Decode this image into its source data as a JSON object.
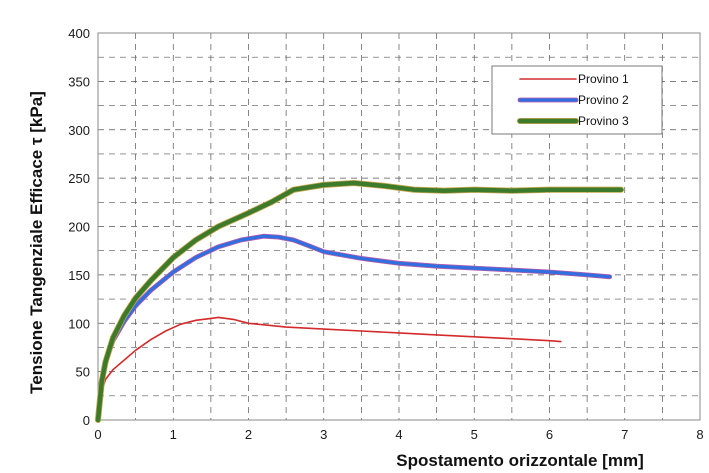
{
  "chart_data": {
    "type": "line",
    "title": "",
    "xlabel": "Spostamento orizzontale  [mm]",
    "ylabel": "Tensione Tangenziale Efficace τ  [kPa]",
    "xlim": [
      0,
      8
    ],
    "ylim": [
      0,
      400
    ],
    "xticks": [
      0,
      1,
      2,
      3,
      4,
      5,
      6,
      7,
      8
    ],
    "yticks": [
      0,
      50,
      100,
      150,
      200,
      250,
      300,
      350,
      400
    ],
    "grid": true,
    "legend_position": "top-right",
    "series": [
      {
        "name": "Provino 1",
        "color": "#d42a2a",
        "x": [
          0,
          0.05,
          0.1,
          0.2,
          0.35,
          0.5,
          0.7,
          0.9,
          1.1,
          1.3,
          1.5,
          1.6,
          1.8,
          2.0,
          2.5,
          3.0,
          3.5,
          4.0,
          4.5,
          5.0,
          5.5,
          6.0,
          6.15
        ],
        "y": [
          0,
          30,
          42,
          52,
          62,
          72,
          83,
          92,
          99,
          103,
          105,
          106,
          104,
          100,
          96,
          94,
          92,
          90,
          88,
          86,
          84,
          82,
          81
        ]
      },
      {
        "name": "Provino 2",
        "color": "#2f6fe0",
        "x": [
          0,
          0.05,
          0.1,
          0.2,
          0.35,
          0.5,
          0.7,
          1.0,
          1.3,
          1.6,
          1.9,
          2.2,
          2.4,
          2.6,
          2.8,
          3.0,
          3.5,
          4.0,
          4.5,
          5.0,
          5.5,
          6.0,
          6.5,
          6.8
        ],
        "y": [
          0,
          40,
          60,
          82,
          102,
          118,
          134,
          153,
          168,
          179,
          186,
          190,
          189,
          186,
          180,
          174,
          167,
          162,
          159,
          157,
          155,
          153,
          150,
          148
        ]
      },
      {
        "name": "Provino 3",
        "color": "#3c7a2c",
        "x": [
          0,
          0.05,
          0.1,
          0.2,
          0.35,
          0.5,
          0.7,
          1.0,
          1.3,
          1.6,
          2.0,
          2.3,
          2.6,
          3.0,
          3.4,
          3.8,
          4.2,
          4.6,
          5.0,
          5.5,
          6.0,
          6.5,
          6.95
        ],
        "y": [
          0,
          40,
          60,
          85,
          108,
          126,
          144,
          168,
          186,
          200,
          214,
          225,
          238,
          243,
          245,
          242,
          238,
          237,
          238,
          237,
          238,
          238,
          238
        ]
      }
    ]
  }
}
